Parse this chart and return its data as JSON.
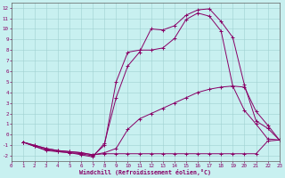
{
  "xlabel": "Windchill (Refroidissement éolien,°C)",
  "bg_color": "#c8f0f0",
  "line_color": "#880066",
  "xlim": [
    0,
    23
  ],
  "ylim": [
    -2.5,
    12.5
  ],
  "xticks": [
    0,
    1,
    2,
    3,
    4,
    5,
    6,
    7,
    8,
    9,
    10,
    11,
    12,
    13,
    14,
    15,
    16,
    17,
    18,
    19,
    20,
    21,
    22,
    23
  ],
  "yticks": [
    -2,
    -1,
    0,
    1,
    2,
    3,
    4,
    5,
    6,
    7,
    8,
    9,
    10,
    11,
    12
  ],
  "lines": [
    {
      "x": [
        1,
        2,
        3,
        4,
        5,
        6,
        7,
        8,
        9,
        10,
        11,
        12,
        13,
        14,
        15,
        16,
        17,
        18,
        19,
        20,
        21,
        22,
        23
      ],
      "y": [
        -0.7,
        -1.1,
        -1.5,
        -1.6,
        -1.7,
        -1.9,
        -2.1,
        -0.8,
        3.5,
        6.5,
        7.8,
        10.0,
        9.9,
        10.3,
        11.3,
        11.8,
        11.9,
        10.7,
        9.2,
        4.7,
        1.3,
        0.6,
        -0.5
      ]
    },
    {
      "x": [
        1,
        2,
        3,
        4,
        5,
        6,
        7,
        8,
        9,
        10,
        11,
        12,
        13,
        14,
        15,
        16,
        17,
        18,
        19,
        20,
        21,
        22,
        23
      ],
      "y": [
        -0.7,
        -1.1,
        -1.4,
        -1.6,
        -1.7,
        -1.8,
        -2.0,
        -1.0,
        5.0,
        7.8,
        8.0,
        8.0,
        8.2,
        9.1,
        10.9,
        11.5,
        11.2,
        9.8,
        4.6,
        2.3,
        1.0,
        -0.4,
        -0.5
      ]
    },
    {
      "x": [
        1,
        2,
        3,
        4,
        5,
        6,
        7,
        8,
        9,
        10,
        11,
        12,
        13,
        14,
        15,
        16,
        17,
        18,
        19,
        20,
        21,
        22,
        23
      ],
      "y": [
        -0.7,
        -1.0,
        -1.3,
        -1.5,
        -1.6,
        -1.7,
        -1.9,
        -1.8,
        -1.8,
        -1.8,
        -1.8,
        -1.8,
        -1.8,
        -1.8,
        -1.8,
        -1.8,
        -1.8,
        -1.8,
        -1.8,
        -1.8,
        -1.8,
        -0.6,
        -0.5
      ]
    },
    {
      "x": [
        1,
        2,
        3,
        4,
        5,
        6,
        7,
        8,
        9,
        10,
        11,
        12,
        13,
        14,
        15,
        16,
        17,
        18,
        19,
        20,
        21,
        22,
        23
      ],
      "y": [
        -0.7,
        -1.0,
        -1.3,
        -1.5,
        -1.6,
        -1.7,
        -1.9,
        -1.7,
        -1.3,
        0.5,
        1.5,
        2.0,
        2.5,
        3.0,
        3.5,
        4.0,
        4.3,
        4.5,
        4.6,
        4.5,
        2.2,
        0.9,
        -0.5
      ]
    }
  ]
}
